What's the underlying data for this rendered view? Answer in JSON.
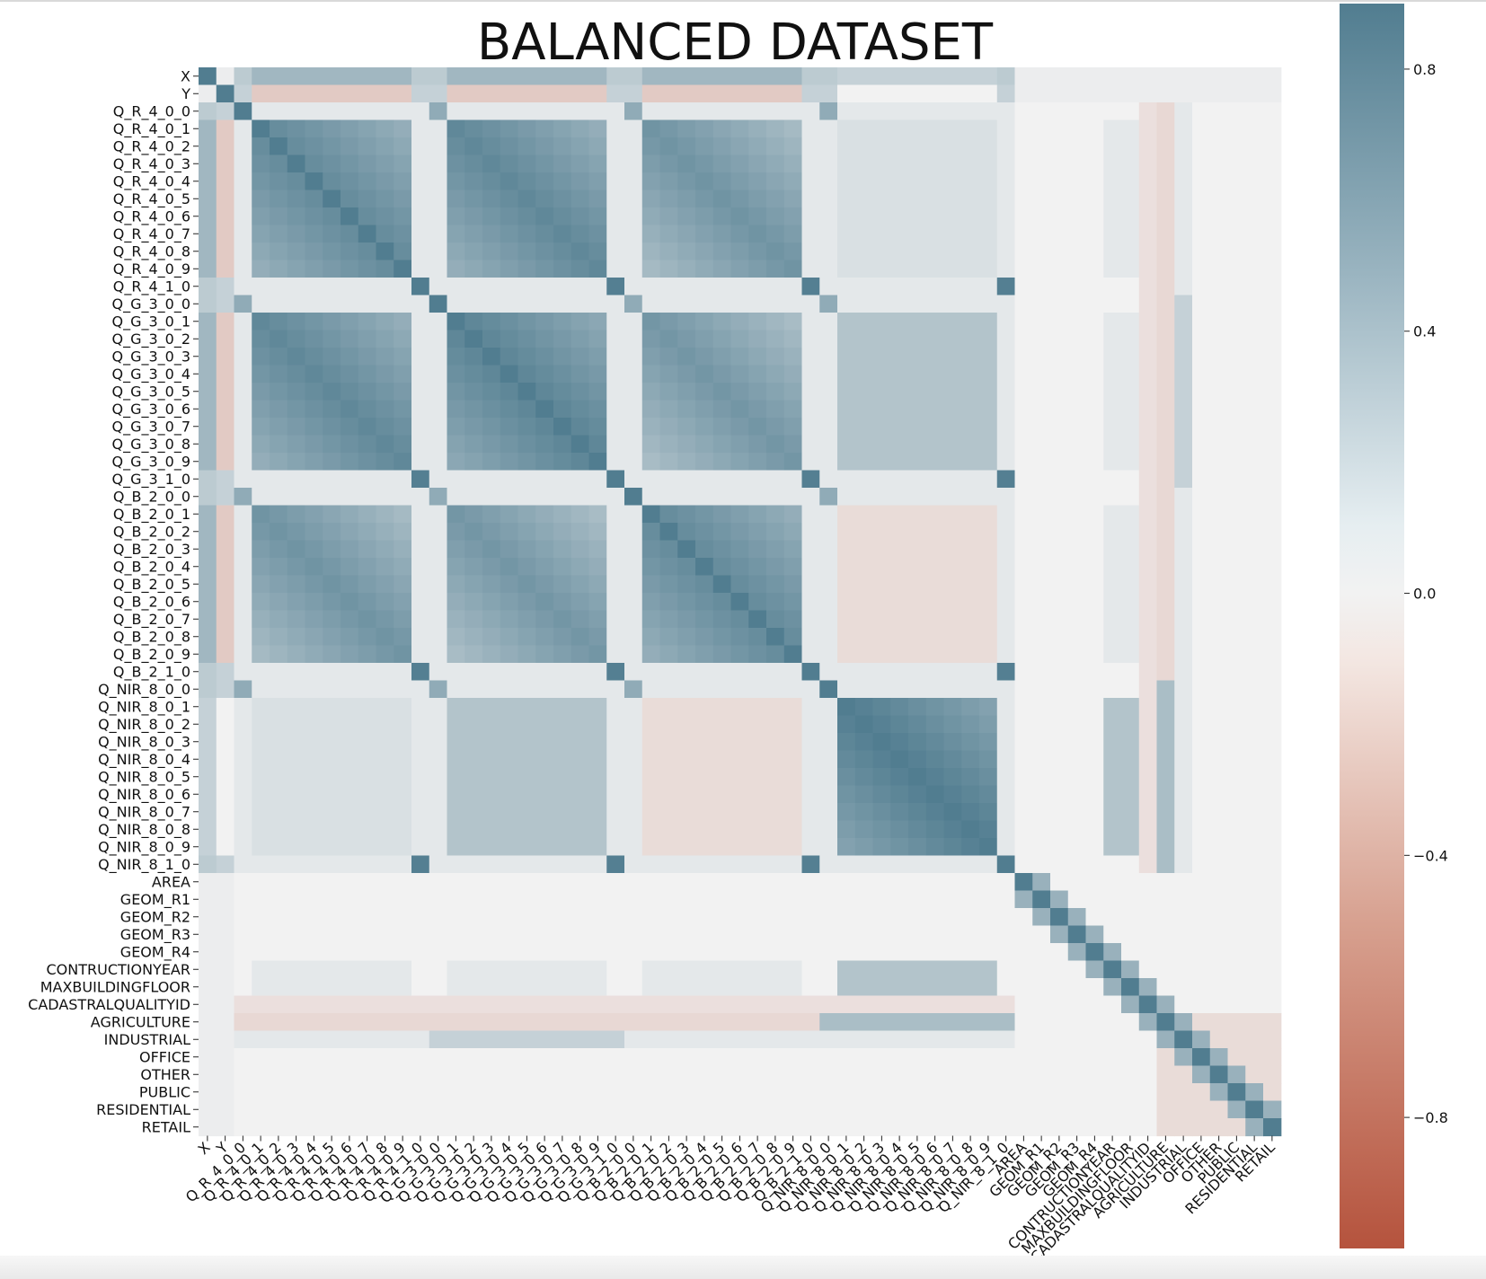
{
  "chart_data": {
    "type": "heatmap",
    "title": "BALANCED DATASET",
    "labels": [
      "X",
      "Y",
      "Q_R_4_0_0",
      "Q_R_4_0_1",
      "Q_R_4_0_2",
      "Q_R_4_0_3",
      "Q_R_4_0_4",
      "Q_R_4_0_5",
      "Q_R_4_0_6",
      "Q_R_4_0_7",
      "Q_R_4_0_8",
      "Q_R_4_0_9",
      "Q_R_4_1_0",
      "Q_G_3_0_0",
      "Q_G_3_0_1",
      "Q_G_3_0_2",
      "Q_G_3_0_3",
      "Q_G_3_0_4",
      "Q_G_3_0_5",
      "Q_G_3_0_6",
      "Q_G_3_0_7",
      "Q_G_3_0_8",
      "Q_G_3_0_9",
      "Q_G_3_1_0",
      "Q_B_2_0_0",
      "Q_B_2_0_1",
      "Q_B_2_0_2",
      "Q_B_2_0_3",
      "Q_B_2_0_4",
      "Q_B_2_0_5",
      "Q_B_2_0_6",
      "Q_B_2_0_7",
      "Q_B_2_0_8",
      "Q_B_2_0_9",
      "Q_B_2_1_0",
      "Q_NIR_8_0_0",
      "Q_NIR_8_0_1",
      "Q_NIR_8_0_2",
      "Q_NIR_8_0_3",
      "Q_NIR_8_0_4",
      "Q_NIR_8_0_5",
      "Q_NIR_8_0_6",
      "Q_NIR_8_0_7",
      "Q_NIR_8_0_8",
      "Q_NIR_8_0_9",
      "Q_NIR_8_1_0",
      "AREA",
      "GEOM_R1",
      "GEOM_R2",
      "GEOM_R3",
      "GEOM_R4",
      "CONTRUCTIONYEAR",
      "MAXBUILDINGFLOOR",
      "CADASTRALQUALITYID",
      "AGRICULTURE",
      "INDUSTRIAL",
      "OFFICE",
      "OTHER",
      "PUBLIC",
      "RESIDENTIAL",
      "RETAIL"
    ],
    "colorbar": {
      "min": -1.0,
      "max": 0.9,
      "ticks": [
        0.8,
        0.4,
        0.0,
        -0.4,
        -0.8
      ],
      "tick_labels": [
        "0.8",
        "0.4",
        "0.0",
        "−0.4",
        "−0.8"
      ],
      "colors": {
        "negative": "#b5533d",
        "center": "#f2f2f2",
        "positive": "#517d90"
      }
    },
    "groups": [
      {
        "name": "Q_R",
        "start": 3,
        "end": 11,
        "first": 2,
        "last": 12
      },
      {
        "name": "Q_G",
        "start": 14,
        "end": 22,
        "first": 13,
        "last": 23
      },
      {
        "name": "Q_B",
        "start": 25,
        "end": 33,
        "first": 24,
        "last": 34
      },
      {
        "name": "Q_NIR",
        "start": 36,
        "end": 44,
        "first": 35,
        "last": 45
      }
    ],
    "block_correlations": {
      "R-R": 0.8,
      "G-G": 0.85,
      "B-B": 0.8,
      "NIR-NIR": 0.9,
      "R-G": 0.8,
      "R-B": 0.7,
      "G-B": 0.68,
      "R-NIR": 0.1,
      "G-NIR": 0.3,
      "B-NIR": -0.1
    },
    "axis_correlations": {
      "X-spectral": 0.4,
      "Y-spectral": -0.2
    },
    "extra_variable_correlation": 0.0,
    "diagonal": 1.0,
    "grid": false
  }
}
